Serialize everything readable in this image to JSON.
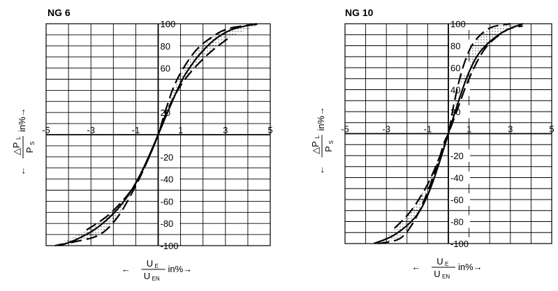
{
  "chart_data": [
    {
      "type": "line",
      "title": "NG 6",
      "xlim": [
        -5,
        5
      ],
      "ylim": [
        -100,
        100
      ],
      "x_ticks": [
        "-5",
        "-3",
        "-1",
        "1",
        "3",
        "5"
      ],
      "x_tick_values": [
        -5,
        -3,
        -1,
        1,
        3,
        5
      ],
      "y_ticks": [
        "100",
        "80",
        "60",
        "20",
        "-20",
        "-40",
        "-60",
        "-80",
        "-100"
      ],
      "y_tick_values": [
        100,
        80,
        60,
        20,
        -20,
        -40,
        -60,
        -80,
        -100
      ],
      "grid": true,
      "ylabel": {
        "pre": "←",
        "num": "△P",
        "num_sub": "L",
        "den": "P",
        "den_sub": "S",
        "post": "in%→"
      },
      "xlabel": {
        "pre": "←",
        "num": "U",
        "num_sub": "E",
        "den": "U",
        "den_sub": "EN",
        "post": "in%→"
      },
      "series": [
        {
          "style": "solid",
          "x": [
            -4.4,
            -3.6,
            -2.6,
            -1.6,
            -0.8,
            0.0,
            0.5,
            1.2,
            2.2,
            3.2,
            4.4
          ],
          "y": [
            -100,
            -94,
            -82,
            -62,
            -36,
            0,
            24,
            54,
            80,
            94,
            100
          ]
        },
        {
          "style": "dashed",
          "x": [
            -3.2,
            -2.2,
            -1.2,
            -0.5,
            0.0,
            0.3,
            0.8,
            1.6,
            2.4,
            3.2,
            4.6
          ],
          "y": [
            -86,
            -72,
            -50,
            -24,
            0,
            20,
            48,
            74,
            88,
            96,
            100
          ]
        },
        {
          "style": "dashed",
          "x": [
            -4.6,
            -3.6,
            -2.6,
            -1.8,
            -1.0,
            -0.4,
            0.0,
            0.5,
            1.2,
            2.2,
            3.2
          ],
          "y": [
            -100,
            -96,
            -90,
            -74,
            -46,
            -20,
            0,
            26,
            50,
            72,
            88
          ]
        }
      ]
    },
    {
      "type": "line",
      "title": "NG 10",
      "xlim": [
        -5,
        5
      ],
      "ylim": [
        -100,
        100
      ],
      "x_ticks": [
        "-5",
        "-3",
        "-1",
        "1",
        "3",
        "5"
      ],
      "x_tick_values": [
        -5,
        -3,
        -1,
        1,
        3,
        5
      ],
      "y_ticks": [
        "100",
        "80",
        "60",
        "40",
        "20",
        "-20",
        "-40",
        "-60",
        "-80",
        "-100"
      ],
      "y_tick_values": [
        100,
        80,
        60,
        40,
        20,
        -20,
        -40,
        -60,
        -80,
        -100
      ],
      "grid": true,
      "ylabel": {
        "pre": "←",
        "num": "△P",
        "num_sub": "L",
        "den": "P",
        "den_sub": "S",
        "post": "in%→"
      },
      "xlabel": {
        "pre": "←",
        "num": "U",
        "num_sub": "E",
        "den": "U",
        "den_sub": "EN",
        "post": "in%→"
      },
      "series": [
        {
          "style": "solid",
          "x": [
            -3.6,
            -2.6,
            -1.6,
            -1.0,
            -0.5,
            0.0,
            0.5,
            1.0,
            1.6,
            2.6,
            3.6
          ],
          "y": [
            -100,
            -92,
            -76,
            -56,
            -30,
            0,
            30,
            56,
            76,
            92,
            100
          ]
        },
        {
          "style": "dashed",
          "x": [
            -2.6,
            -1.8,
            -1.0,
            -0.4,
            0.0,
            0.3,
            0.7,
            1.2,
            2.0,
            3.0
          ],
          "y": [
            -86,
            -70,
            -46,
            -20,
            0,
            30,
            60,
            82,
            96,
            100
          ]
        },
        {
          "style": "dashed",
          "x": [
            -3.4,
            -2.4,
            -1.8,
            -1.2,
            -0.6,
            -0.2,
            0.0,
            0.4,
            1.0,
            1.8,
            2.8,
            3.6
          ],
          "y": [
            -100,
            -96,
            -84,
            -62,
            -32,
            -8,
            0,
            20,
            50,
            78,
            94,
            98
          ]
        }
      ]
    }
  ]
}
